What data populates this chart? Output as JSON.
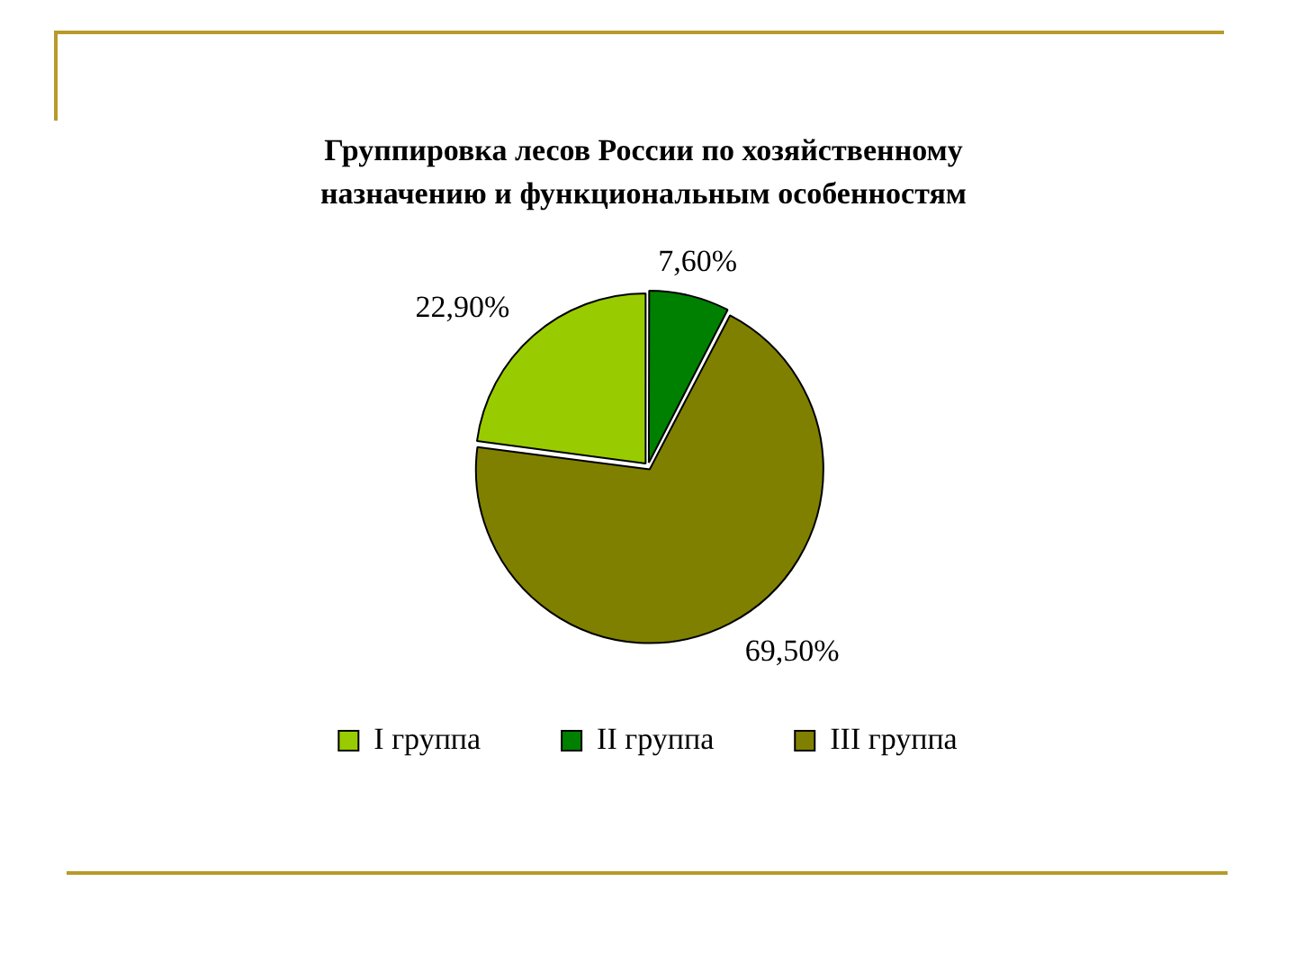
{
  "chart_data": {
    "type": "pie",
    "title": "Группировка лесов России по хозяйственному назначению и функциональным особенностям",
    "categories": [
      "I группа",
      "II группа",
      "III группа"
    ],
    "values": [
      22.9,
      7.6,
      69.5
    ],
    "colors": [
      "#99cc00",
      "#008000",
      "#808000"
    ],
    "value_labels": [
      "22,90%",
      "7,60%",
      "69,50%"
    ],
    "legend": "bottom"
  }
}
